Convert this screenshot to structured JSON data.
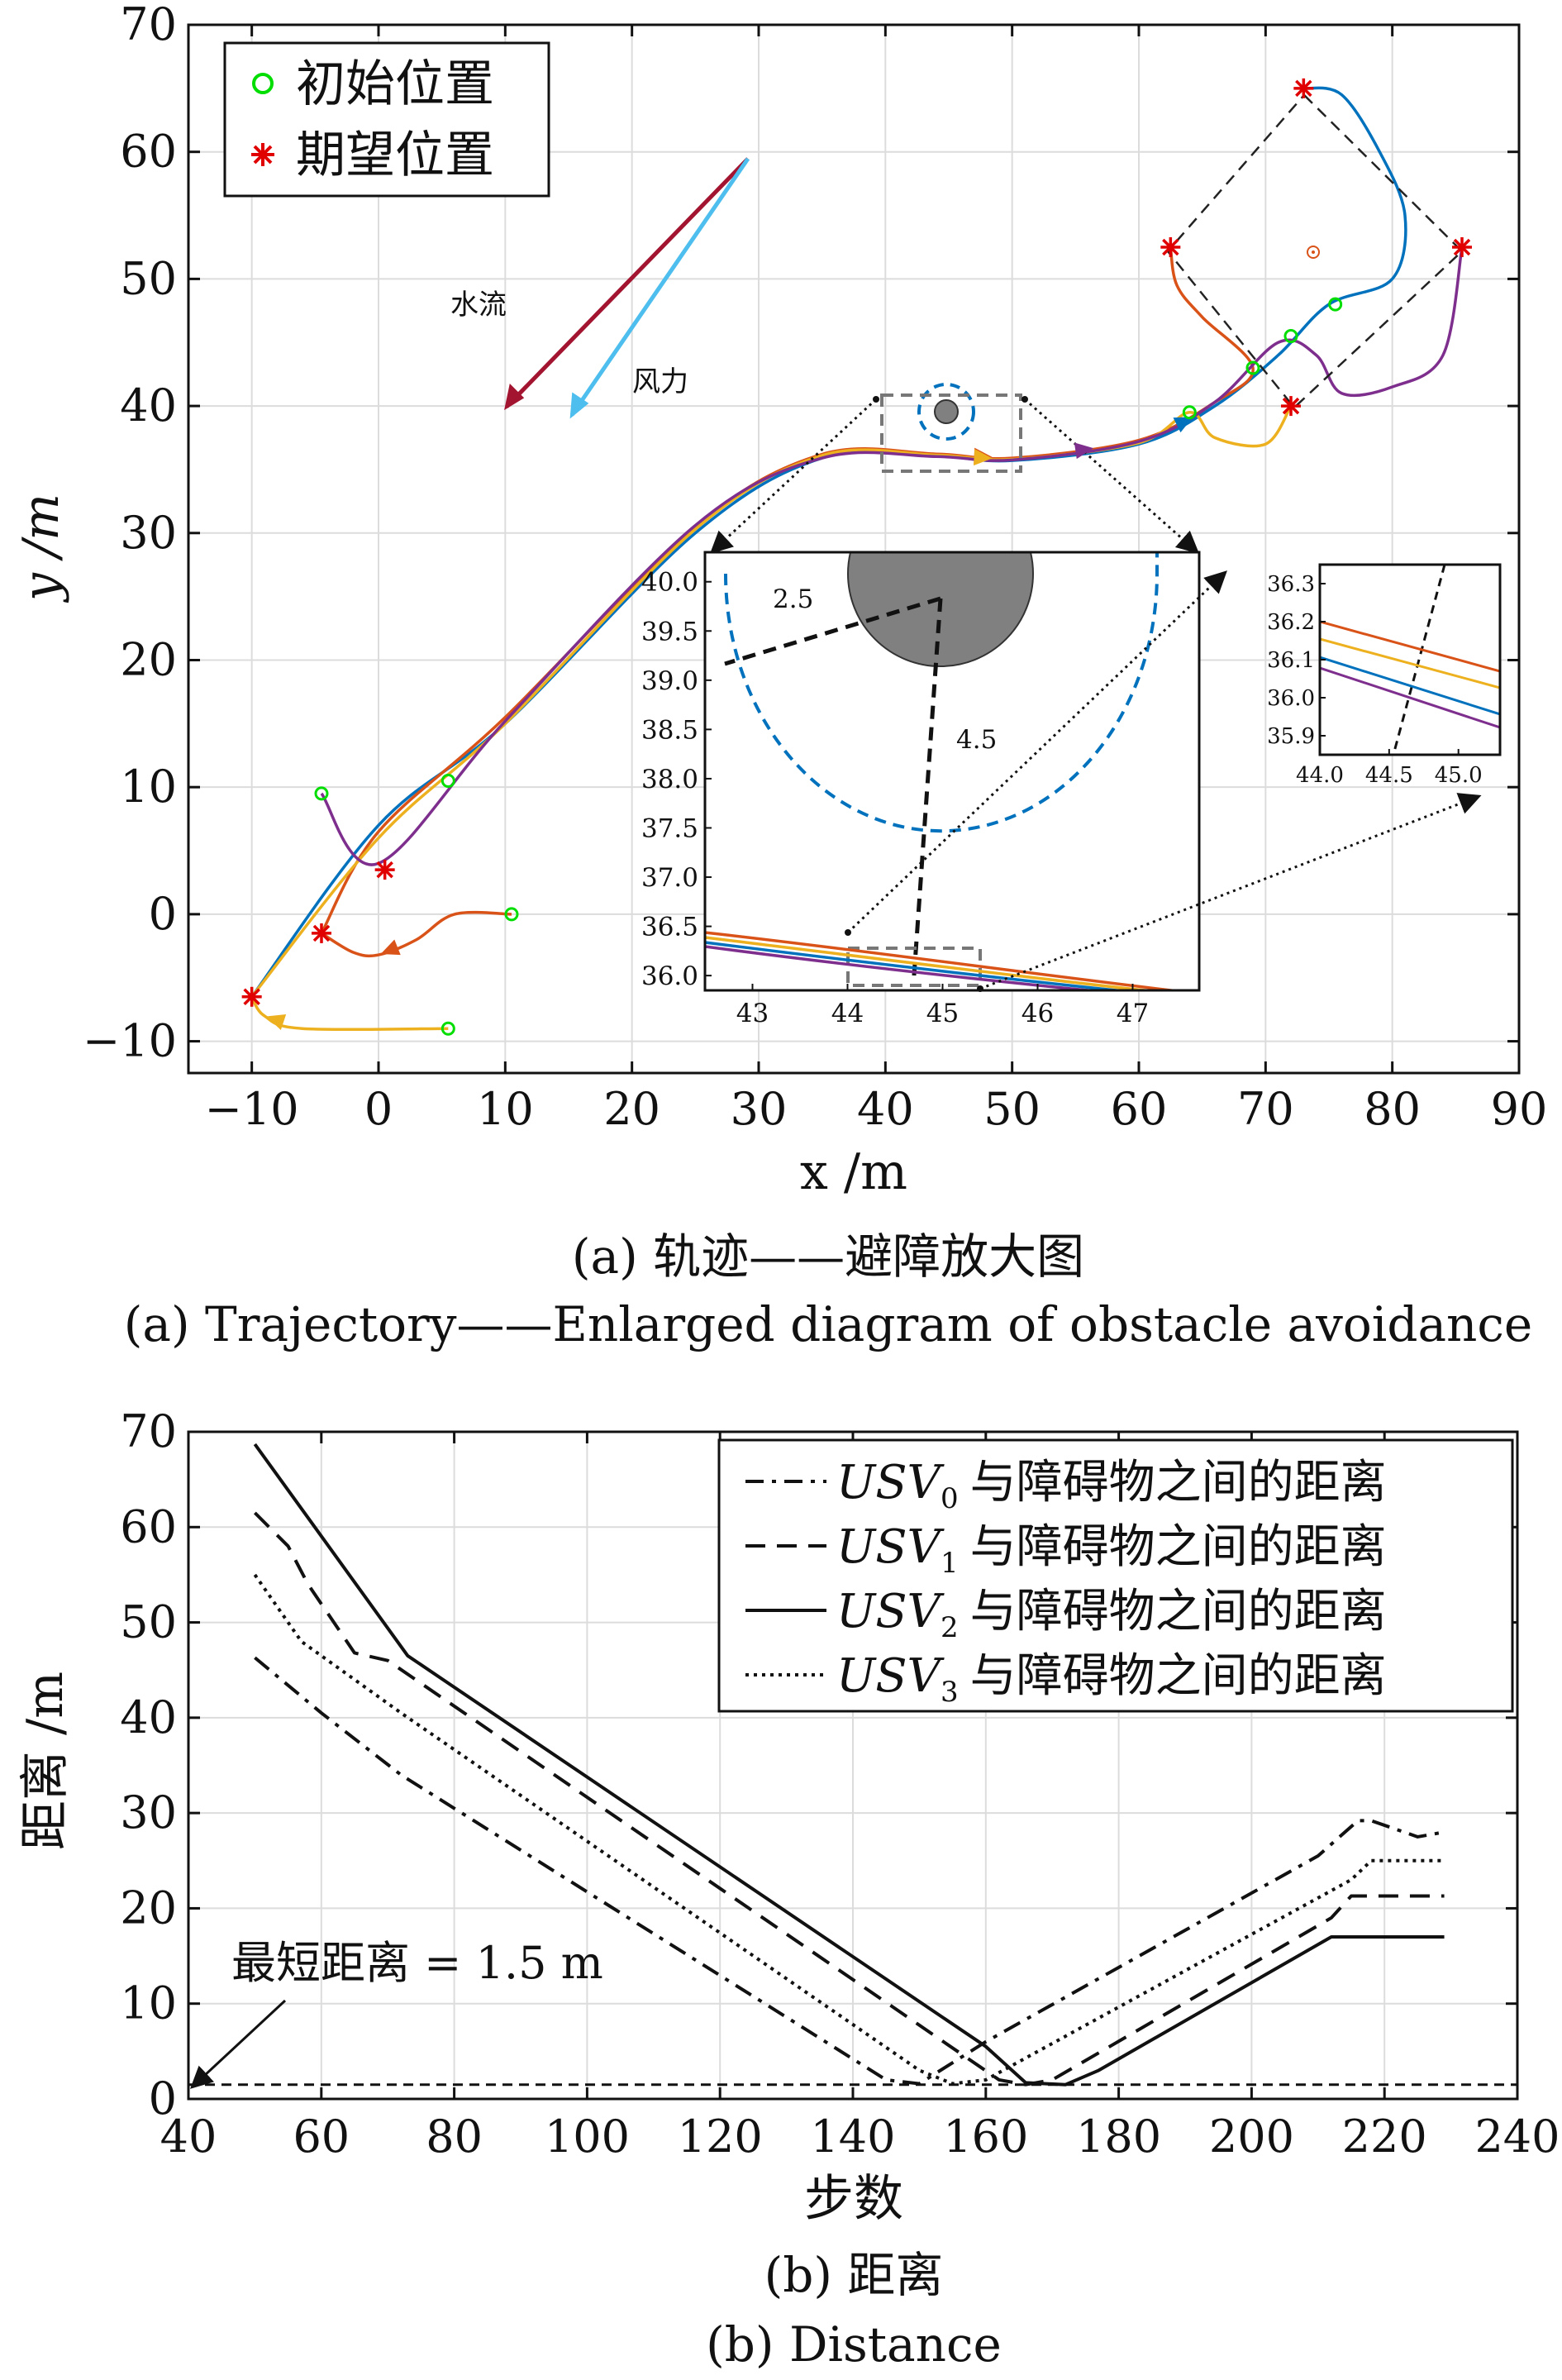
{
  "colors": {
    "usv0": "#0072BD",
    "usv1": "#D95319",
    "usv2": "#EDB120",
    "usv3": "#7E2F8E",
    "start_marker": "#00dd00",
    "target_marker": "#e00000",
    "water_arrow": "#a2142f",
    "wind_arrow": "#4dbeee",
    "obstacle": "#808080"
  },
  "top_panel": {
    "legend": {
      "start": "初始位置",
      "target": "期望位置"
    },
    "annotations": {
      "water": "水流",
      "wind": "风力"
    },
    "caption_cn": "(a) 轨迹——避障放大图",
    "caption_en": "(a) Trajectory——Enlarged diagram of obstacle avoidance",
    "inset": {
      "radius_label": "2.5",
      "distance_label": "4.5",
      "x_ticks": [
        "43",
        "44",
        "45",
        "46",
        "47"
      ],
      "y_ticks": [
        "36.0",
        "36.5",
        "37.0",
        "37.5",
        "38.0",
        "38.5",
        "39.0",
        "39.5",
        "40.0"
      ]
    },
    "inset2": {
      "x_ticks": [
        "44.0",
        "44.5",
        "45.0"
      ],
      "y_ticks": [
        "35.9",
        "36.0",
        "36.1",
        "36.2",
        "36.3"
      ]
    }
  },
  "bottom_panel": {
    "legend": [
      {
        "prefix": "USV",
        "sub": "0",
        "suffix": "与障碍物之间的距离",
        "style": "dashdot"
      },
      {
        "prefix": "USV",
        "sub": "1",
        "suffix": "与障碍物之间的距离",
        "style": "dashed"
      },
      {
        "prefix": "USV",
        "sub": "2",
        "suffix": "与障碍物之间的距离",
        "style": "solid"
      },
      {
        "prefix": "USV",
        "sub": "3",
        "suffix": "与障碍物之间的距离",
        "style": "dotted"
      }
    ],
    "annotation": "最短距离 = 1.5 m",
    "caption_cn": "(b) 距离",
    "caption_en": "(b) Distance"
  },
  "chart_data": [
    {
      "type": "line",
      "xlabel": "x /m",
      "ylabel": "y /m",
      "xlim": [
        -15,
        90
      ],
      "ylim": [
        -12.5,
        70
      ],
      "x_ticks": [
        -10,
        0,
        10,
        20,
        30,
        40,
        50,
        60,
        70,
        80,
        90
      ],
      "y_ticks": [
        -10,
        0,
        10,
        20,
        30,
        40,
        50,
        60,
        70
      ],
      "grid": true,
      "legend_position": "top-left",
      "obstacle": {
        "x": 44.5,
        "y": 40.0,
        "radius": 1.0,
        "safety_radius": 2.5
      },
      "start_positions": [
        [
          75.5,
          48
        ],
        [
          72,
          45.5
        ],
        [
          69,
          43
        ],
        [
          64,
          39.5
        ],
        [
          5.5,
          10.5
        ],
        [
          10.5,
          0
        ],
        [
          5.5,
          -9
        ],
        [
          -4.5,
          9.5
        ]
      ],
      "target_positions": [
        [
          73,
          65
        ],
        [
          85.5,
          52.5
        ],
        [
          62.5,
          52.5
        ],
        [
          72,
          40
        ],
        [
          0.5,
          3.5
        ],
        [
          -4.5,
          -1.5
        ],
        [
          -10,
          -6.5
        ]
      ],
      "series": [
        {
          "color_key": "usv0",
          "points": [
            [
              -10,
              -6.5
            ],
            [
              0,
              7
            ],
            [
              10,
              15
            ],
            [
              25,
              30
            ],
            [
              35,
              35.9
            ],
            [
              44,
              36.05
            ],
            [
              50,
              35.7
            ],
            [
              60,
              37
            ],
            [
              66,
              40
            ],
            [
              71,
              44
            ],
            [
              75,
              48
            ],
            [
              80,
              50
            ],
            [
              81,
              55
            ],
            [
              79,
              60
            ],
            [
              76,
              64.5
            ],
            [
              73,
              65
            ]
          ]
        },
        {
          "color_key": "usv1",
          "points": [
            [
              -4.5,
              -1.5
            ],
            [
              0,
              6.5
            ],
            [
              10,
              15.5
            ],
            [
              25,
              30.5
            ],
            [
              35,
              36.2
            ],
            [
              44,
              36.22
            ],
            [
              50,
              35.9
            ],
            [
              60,
              37.3
            ],
            [
              66,
              40.3
            ],
            [
              69,
              43
            ],
            [
              65,
              47
            ],
            [
              63,
              49.5
            ],
            [
              62.5,
              52.5
            ]
          ]
        },
        {
          "color_key": "usv2",
          "points": [
            [
              -10,
              -6.5
            ],
            [
              0,
              6
            ],
            [
              10,
              15
            ],
            [
              25,
              30.3
            ],
            [
              35,
              36.1
            ],
            [
              44,
              36.13
            ],
            [
              50,
              35.8
            ],
            [
              60,
              37.1
            ],
            [
              64,
              39.5
            ],
            [
              66,
              37.5
            ],
            [
              70,
              37
            ],
            [
              72,
              40
            ]
          ]
        },
        {
          "color_key": "usv3",
          "points": [
            [
              -4.5,
              9.5
            ],
            [
              0,
              4
            ],
            [
              10,
              15.2
            ],
            [
              25,
              30.6
            ],
            [
              35,
              35.9
            ],
            [
              44,
              36.02
            ],
            [
              50,
              35.75
            ],
            [
              60,
              37.2
            ],
            [
              66,
              40.3
            ],
            [
              71,
              45
            ],
            [
              74,
              44
            ],
            [
              76,
              41
            ],
            [
              80,
              41.5
            ],
            [
              84,
              44
            ],
            [
              85.5,
              52.5
            ]
          ]
        },
        {
          "color_key": "usv1",
          "points": [
            [
              10.5,
              0
            ],
            [
              6,
              0
            ],
            [
              3,
              -2
            ],
            [
              0,
              -3.2
            ],
            [
              -2,
              -3
            ],
            [
              -4.5,
              -1.5
            ]
          ]
        },
        {
          "color_key": "usv2",
          "points": [
            [
              5.5,
              -9
            ],
            [
              -6,
              -9
            ],
            [
              -9,
              -8
            ],
            [
              -10,
              -6.5
            ]
          ]
        }
      ]
    },
    {
      "type": "line",
      "xlabel": "步数",
      "ylabel": "距离 /m",
      "xlim": [
        40,
        240
      ],
      "ylim": [
        0,
        70
      ],
      "x_ticks": [
        40,
        60,
        80,
        100,
        120,
        140,
        160,
        180,
        200,
        220,
        240
      ],
      "y_ticks": [
        0,
        10,
        20,
        30,
        40,
        50,
        60,
        70
      ],
      "grid": true,
      "legend_position": "top-right",
      "min_distance": 1.5,
      "series": [
        {
          "name": "USV0 与障碍物之间的距离",
          "style": "dashdot",
          "x": [
            50,
            60,
            72,
            145,
            150,
            160,
            210,
            216,
            218,
            225,
            229
          ],
          "y": [
            46.3,
            40.5,
            34,
            2,
            1.6,
            6,
            25.5,
            29.2,
            29.2,
            27.5,
            28
          ]
        },
        {
          "name": "USV1 与障碍物之间的距离",
          "style": "dashed",
          "x": [
            50,
            55,
            58,
            65,
            70,
            162,
            166,
            170,
            212,
            215,
            229
          ],
          "y": [
            61.5,
            58,
            54,
            46.8,
            46,
            2,
            1.5,
            2,
            19,
            21.3,
            21.3
          ]
        },
        {
          "name": "USV2 与障碍物之间的距离",
          "style": "solid",
          "x": [
            50,
            73,
            160,
            166,
            172,
            177,
            212,
            229
          ],
          "y": [
            68.7,
            46.5,
            5.5,
            1.7,
            1.5,
            3,
            17,
            17
          ]
        },
        {
          "name": "USV3 与障碍物之间的距离",
          "style": "dotted",
          "x": [
            50,
            57,
            65,
            72,
            150,
            155,
            160,
            215,
            218,
            229
          ],
          "y": [
            55,
            48,
            44,
            40.5,
            3,
            1.6,
            2,
            23,
            25,
            25
          ]
        }
      ]
    }
  ]
}
